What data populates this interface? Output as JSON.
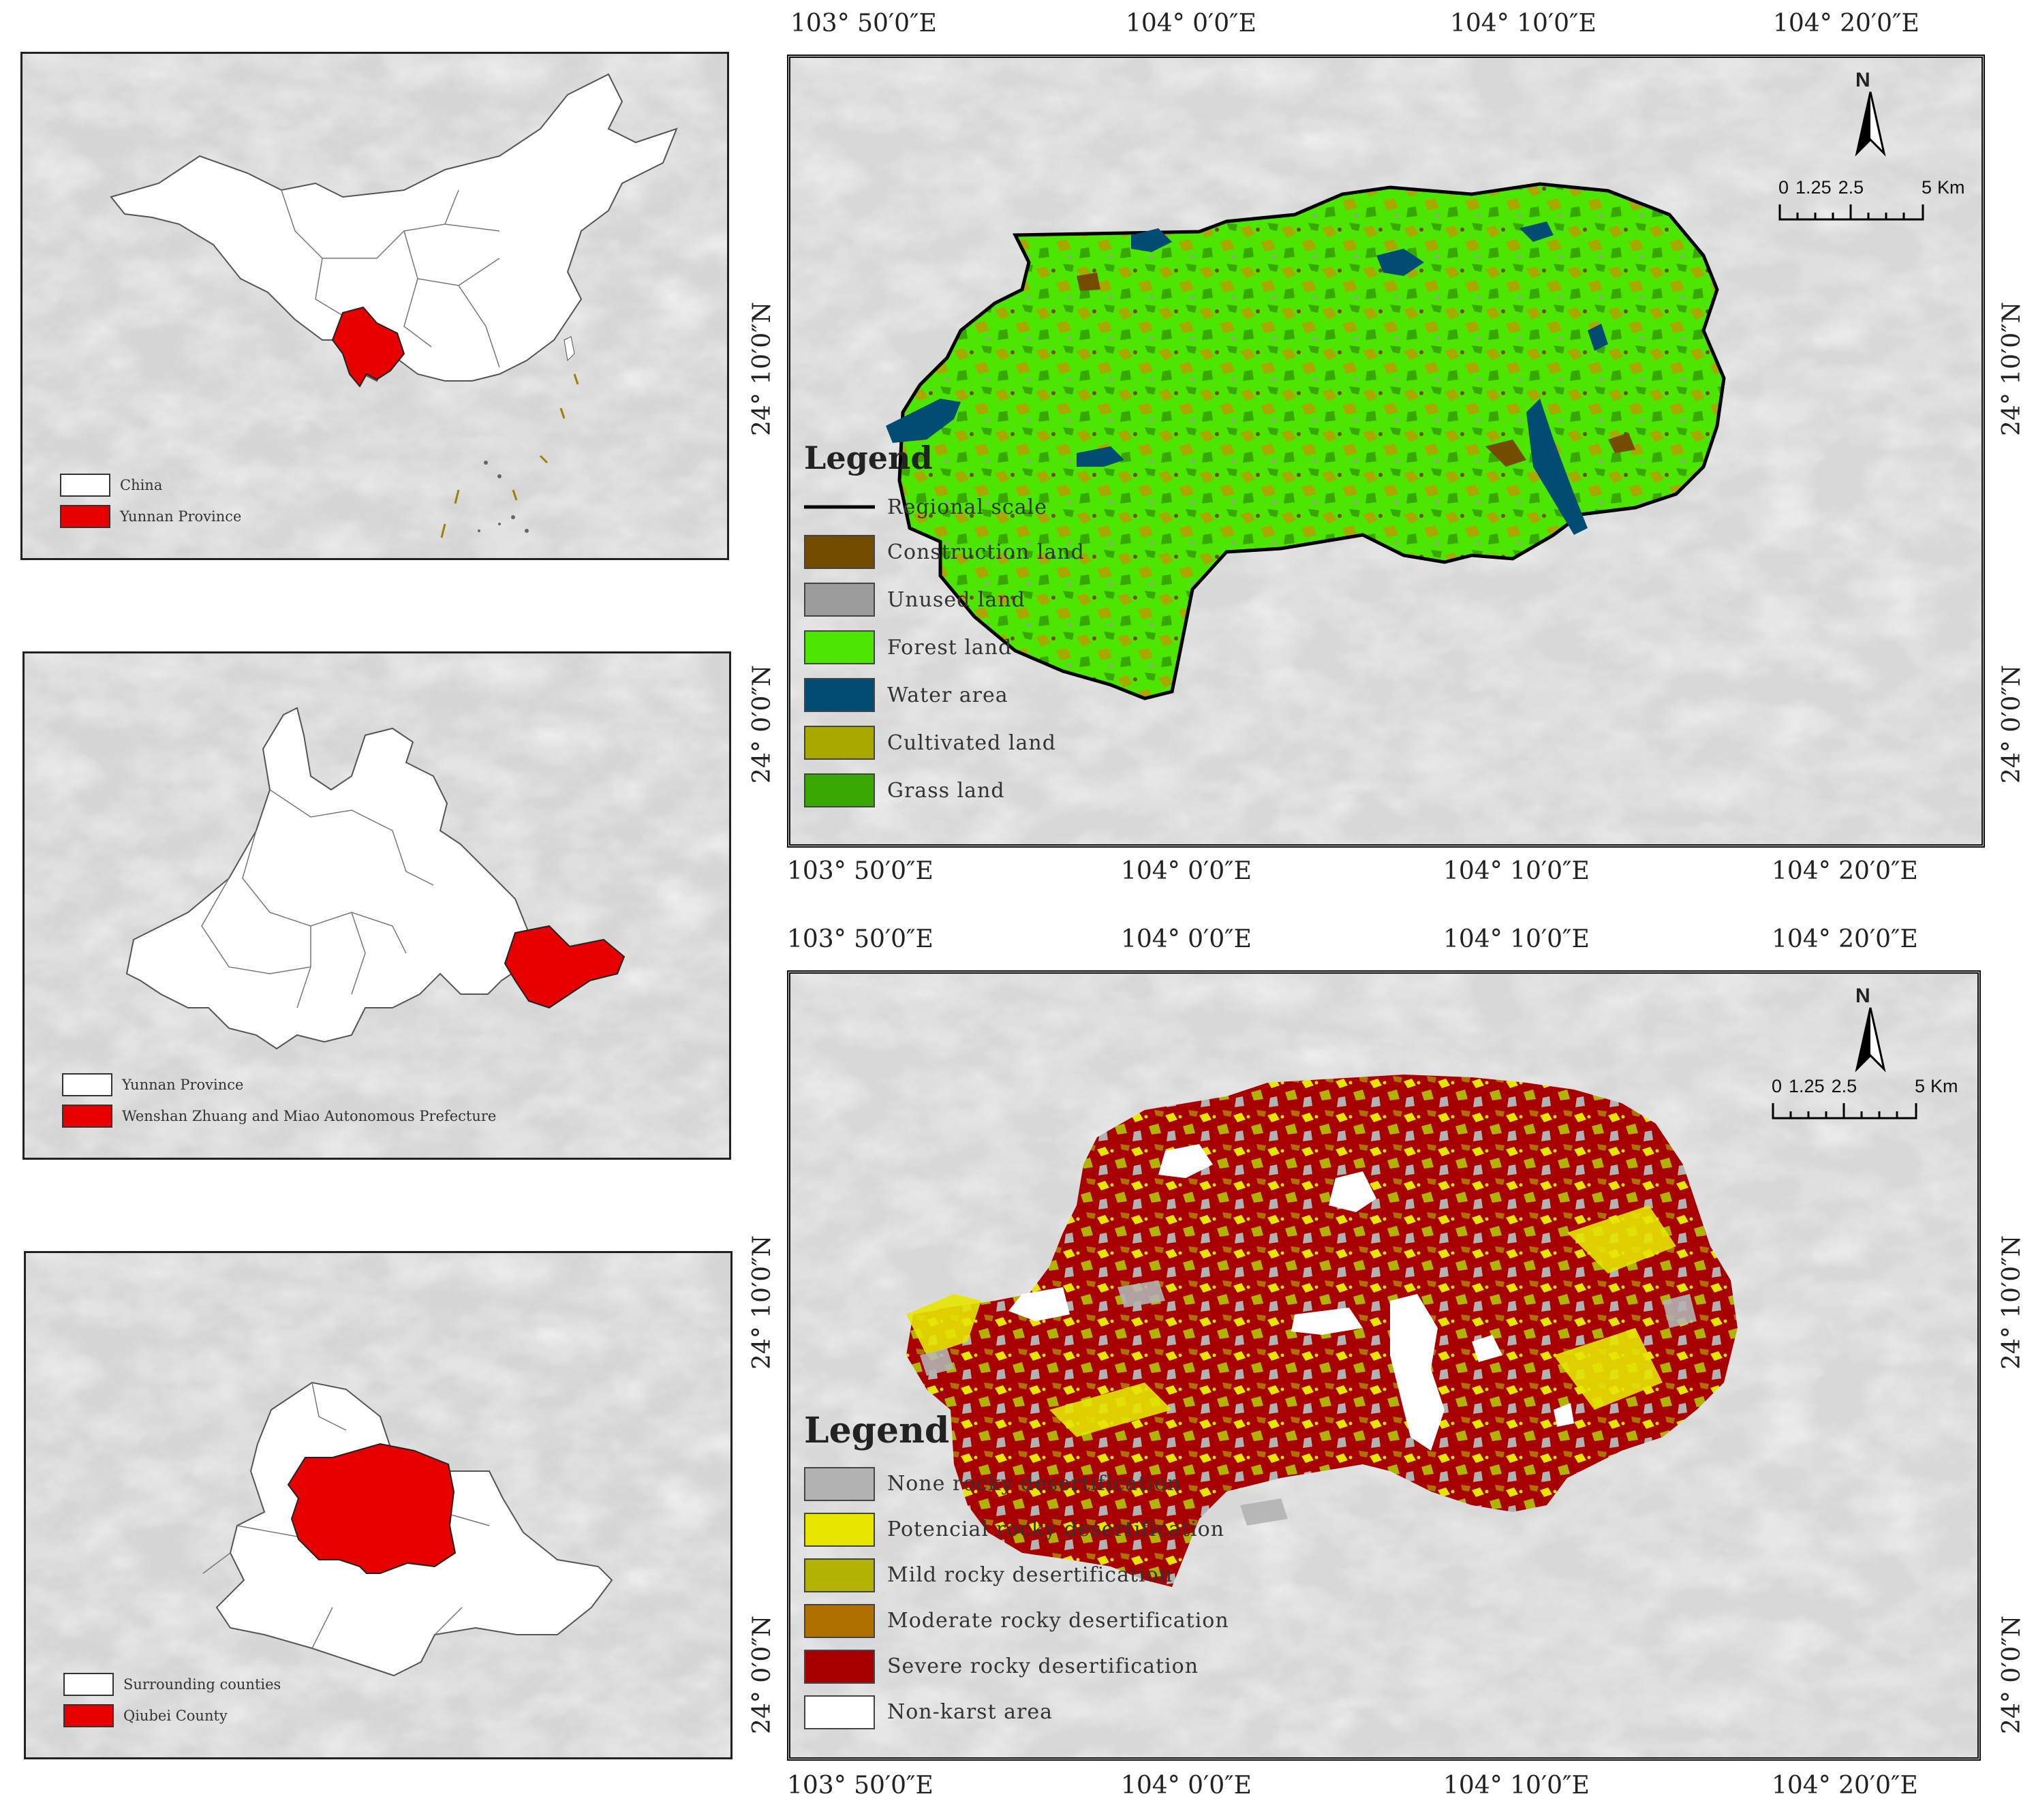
{
  "inset_china": {
    "legend": [
      {
        "label": "China",
        "color": "#ffffff"
      },
      {
        "label": "Yunnan Province",
        "color": "#e60000"
      }
    ]
  },
  "inset_yunnan": {
    "legend": [
      {
        "label": "Yunnan Province",
        "color": "#ffffff"
      },
      {
        "label": "Wenshan Zhuang and Miao Autonomous Prefecture",
        "color": "#e60000"
      }
    ]
  },
  "inset_county": {
    "legend": [
      {
        "label": "Surrounding counties",
        "color": "#ffffff"
      },
      {
        "label": "Qiubei County",
        "color": "#e60000"
      }
    ]
  },
  "coords": {
    "lon": [
      "103° 50′0″E",
      "104° 0′0″E",
      "104° 10′0″E",
      "104° 20′0″E"
    ],
    "lat": [
      "24° 10′0″N",
      "24° 0′0″N"
    ]
  },
  "map_landuse": {
    "north": "N",
    "scale": {
      "labels": [
        "0",
        "1.25",
        "2.5",
        "5"
      ],
      "unit": "Km"
    },
    "legend_title": "Legend",
    "boundary_label": "Regional scale",
    "legend": [
      {
        "label": "Construction land",
        "color": "#734c00"
      },
      {
        "label": "Unused land",
        "color": "#9c9c9c"
      },
      {
        "label": "Forest land",
        "color": "#4ce600"
      },
      {
        "label": "Water area",
        "color": "#004c73"
      },
      {
        "label": "Cultivated land",
        "color": "#a8a800"
      },
      {
        "label": "Grass land",
        "color": "#38a800"
      }
    ]
  },
  "map_desert": {
    "north": "N",
    "scale": {
      "labels": [
        "0",
        "1.25",
        "2.5",
        "5"
      ],
      "unit": "Km"
    },
    "legend_title": "Legend",
    "legend": [
      {
        "label": "None rocky desertification",
        "color": "#b2b2b2"
      },
      {
        "label": "Potencial rocky desertification",
        "color": "#e6e600"
      },
      {
        "label": "Mild rocky desertification",
        "color": "#b2b200"
      },
      {
        "label": "Moderate rocky desertification",
        "color": "#b07000"
      },
      {
        "label": "Severe rocky desertification",
        "color": "#a80000"
      },
      {
        "label": "Non-karst area",
        "color": "#ffffff"
      }
    ]
  }
}
